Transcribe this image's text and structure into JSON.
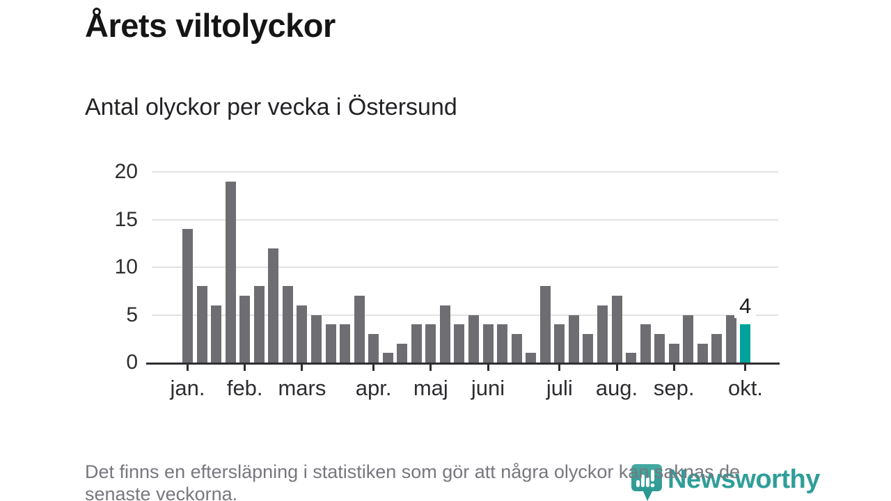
{
  "title": "Årets viltolyckor",
  "subtitle": "Antal olyckor per vecka i Östersund",
  "chart_data": {
    "type": "bar",
    "title": "Årets viltolyckor",
    "subtitle": "Antal olyckor per vecka i Östersund",
    "x_unit": "vecka",
    "values": [
      14,
      8,
      6,
      19,
      7,
      8,
      12,
      8,
      6,
      5,
      4,
      4,
      7,
      3,
      1,
      2,
      4,
      4,
      6,
      4,
      5,
      4,
      4,
      3,
      1,
      8,
      4,
      5,
      3,
      6,
      7,
      1,
      4,
      3,
      2,
      5,
      2,
      3,
      5,
      4
    ],
    "highlight_index": 39,
    "highlight_label": "4",
    "y_ticks": [
      0,
      5,
      10,
      15,
      20
    ],
    "ylim": [
      0,
      20
    ],
    "grid": true,
    "legend": false,
    "month_ticks": [
      {
        "label": "jan.",
        "week": 0
      },
      {
        "label": "feb.",
        "week": 4
      },
      {
        "label": "mars",
        "week": 8
      },
      {
        "label": "apr.",
        "week": 13
      },
      {
        "label": "maj",
        "week": 17
      },
      {
        "label": "juni",
        "week": 21
      },
      {
        "label": "juli",
        "week": 26
      },
      {
        "label": "aug.",
        "week": 30
      },
      {
        "label": "sep.",
        "week": 34
      },
      {
        "label": "okt.",
        "week": 39
      }
    ],
    "colors": {
      "bar": "#6e6d72",
      "highlight": "#00a39b",
      "gridline": "#e3e3e3",
      "axis": "#2e2d32"
    }
  },
  "footer": {
    "line1": "Det finns en eftersläpning i statistiken som gör att några olyckor kan saknas de",
    "line2": "senaste veckorna."
  },
  "logo": {
    "text": "Newsworthy",
    "color": "#2f9e99",
    "icon": "newsworthy-pin-bar-chart-icon"
  }
}
